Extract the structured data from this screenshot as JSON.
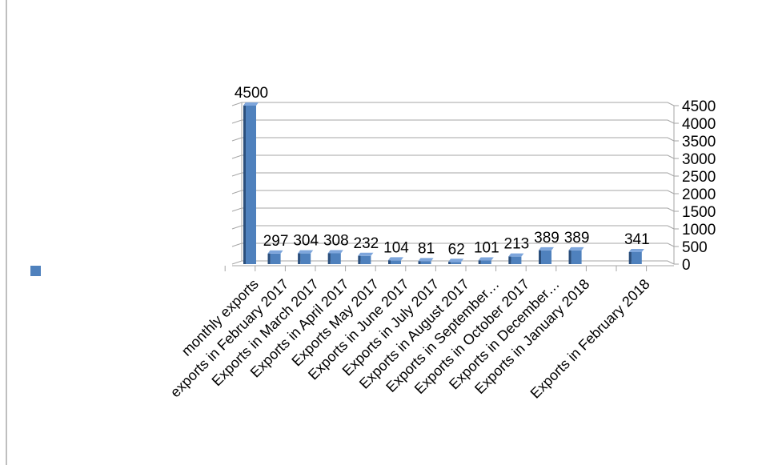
{
  "chart_data": {
    "type": "bar",
    "title": "",
    "xlabel": "",
    "ylabel": "",
    "categories": [
      "monthly exports",
      "exports in February 2017",
      "Exports in March 2017",
      "Exports in April 2017",
      "Exports May 2017",
      "Exports in June 2017",
      "Exports in July 2017",
      "Exports in August 2017",
      "Exports in September…",
      "Exports in October 2017",
      "Exports in December…",
      "Exports in January 2018",
      "",
      "Exports in February 2018"
    ],
    "series": [
      {
        "values": [
          4500,
          297,
          304,
          308,
          232,
          104,
          81,
          62,
          101,
          213,
          389,
          389,
          null,
          341
        ],
        "data_labels": [
          "4500",
          "297",
          "304",
          "308",
          "232",
          "104",
          "81",
          "62",
          "101",
          "213",
          "389",
          "389",
          "",
          "341"
        ]
      }
    ],
    "ylim": [
      0,
      4500
    ],
    "y_ticks": [
      "0",
      "500",
      "1000",
      "1500",
      "2000",
      "2500",
      "3000",
      "3500",
      "4000",
      "4500"
    ],
    "y_axis_side": "right",
    "grid": true,
    "three_d": true,
    "legend": "left",
    "colors": {
      "bar_front": "#4f81bd",
      "bar_top": "#7ea6dc",
      "bar_side": "#2b4f7c",
      "grid": "#a6a6a6",
      "legend_swatch": "#4f81bd",
      "frame": "#7f7f7f",
      "text": "#000000"
    }
  }
}
